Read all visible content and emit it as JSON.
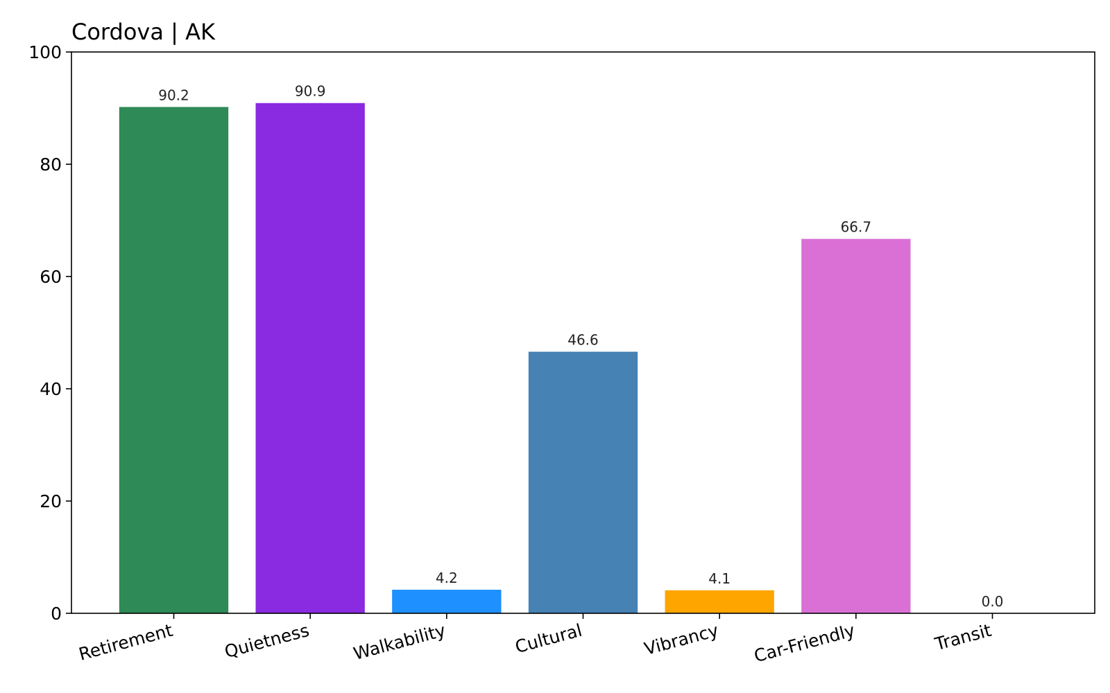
{
  "chart_data": {
    "type": "bar",
    "title": "Cordova | AK",
    "xlabel": "",
    "ylabel": "",
    "ylim": [
      0,
      100
    ],
    "yticks": [
      0,
      20,
      40,
      60,
      80,
      100
    ],
    "categories": [
      "Retirement",
      "Quietness",
      "Walkability",
      "Cultural",
      "Vibrancy",
      "Car-Friendly",
      "Transit"
    ],
    "values": [
      90.2,
      90.9,
      4.2,
      46.6,
      4.1,
      66.7,
      0.0
    ],
    "value_labels": [
      "90.2",
      "90.9",
      "4.2",
      "46.6",
      "4.1",
      "66.7",
      "0.0"
    ],
    "colors": [
      "#2e8b57",
      "#8a2be2",
      "#1e90ff",
      "#4682b4",
      "#ffa500",
      "#da70d6",
      "#808080"
    ],
    "grid": false,
    "legend": "none"
  }
}
